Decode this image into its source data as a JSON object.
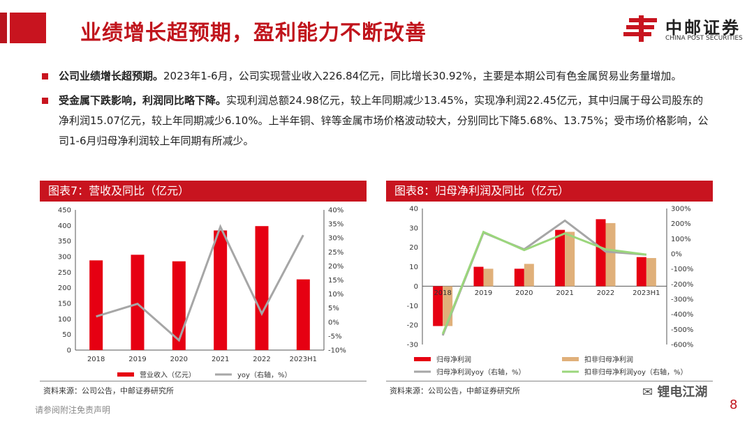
{
  "page": {
    "title": "业绩增长超预期，盈利能力不断改善",
    "logo_cn": "中邮证券",
    "logo_en": "CHINA POST SECURITIES",
    "footer": "请参阅附注免责声明",
    "page_number": "8",
    "watermark": "锂电江湖"
  },
  "colors": {
    "accent": "#c8141f",
    "bar_red": "#e60012",
    "bar_tan": "#e0b07a",
    "line_gray": "#a6a6a6",
    "line_green": "#9bd67c"
  },
  "bullets": [
    {
      "bold": "公司业绩增长超预期。",
      "text": "2023年1-6月，公司实现营业收入226.84亿元，同比增长30.92%，主要是本期公司有色金属贸易业务量增加。"
    },
    {
      "bold": "受金属下跌影响，利润同比略下降。",
      "text": "实现利润总额24.98亿元，较上年同期减少13.45%，实现净利润22.45亿元，其中归属于母公司股东的净利润15.07亿元，较上年同期减少6.10%。上半年铜、锌等金属市场价格波动较大，分别同比下降5.68%、13.75%；受市场价格影响，公司1-6月归母净利润较上年同期有所减少。"
    }
  ],
  "chart_data": [
    {
      "type": "bar",
      "title": "图表7：营收及同比（亿元）",
      "categories": [
        "2018",
        "2019",
        "2020",
        "2021",
        "2022",
        "2023H1"
      ],
      "series": [
        {
          "name": "营业收入（亿元）",
          "type": "bar",
          "axis": "left",
          "values": [
            288,
            306,
            285,
            384,
            398,
            227
          ]
        },
        {
          "name": "yoy（右轴，%）",
          "type": "line",
          "axis": "right",
          "values": [
            2,
            6.5,
            -6.5,
            34,
            3,
            31
          ]
        }
      ],
      "y_left": {
        "min": 0,
        "max": 450,
        "step": 50,
        "ticks": [
          "0",
          "50",
          "100",
          "150",
          "200",
          "250",
          "300",
          "350",
          "400",
          "450"
        ]
      },
      "y_right": {
        "min": -10,
        "max": 40,
        "step": 5,
        "ticks": [
          "-10%",
          "-5%",
          "0%",
          "5%",
          "10%",
          "15%",
          "20%",
          "25%",
          "30%",
          "35%",
          "40%"
        ]
      },
      "legend_position": "bottom",
      "source": "资料来源：公司公告，中邮证券研究所"
    },
    {
      "type": "bar",
      "title": "图表8：归母净利润及同比（亿元）",
      "categories": [
        "2018",
        "2019",
        "2020",
        "2021",
        "2022",
        "2023H1"
      ],
      "series": [
        {
          "name": "归母净利润",
          "type": "bar",
          "axis": "left",
          "values": [
            -20.5,
            10,
            9,
            29,
            34.5,
            15
          ]
        },
        {
          "name": "扣非归母净利润",
          "type": "bar",
          "axis": "left",
          "values": [
            -20.5,
            9,
            11.5,
            28,
            32.5,
            14.5
          ]
        },
        {
          "name": "归母净利润yoy（右轴，%）",
          "type": "line",
          "axis": "right",
          "values": [
            -540,
            140,
            30,
            220,
            15,
            -6
          ]
        },
        {
          "name": "扣非归母净利润yoy（右轴，%）",
          "type": "line",
          "axis": "right",
          "values": [
            -530,
            145,
            25,
            135,
            30,
            -5
          ]
        }
      ],
      "y_left": {
        "min": -30,
        "max": 40,
        "step": 10,
        "ticks": [
          "-30",
          "-20",
          "-10",
          "0",
          "10",
          "20",
          "30",
          "40"
        ]
      },
      "y_right": {
        "min": -600,
        "max": 300,
        "step": 100,
        "ticks": [
          "-600%",
          "-500%",
          "-400%",
          "-300%",
          "-200%",
          "-100%",
          "0%",
          "100%",
          "200%",
          "300%"
        ]
      },
      "legend_position": "bottom",
      "source": "资料来源：公司公告，中邮证券研究所"
    }
  ]
}
